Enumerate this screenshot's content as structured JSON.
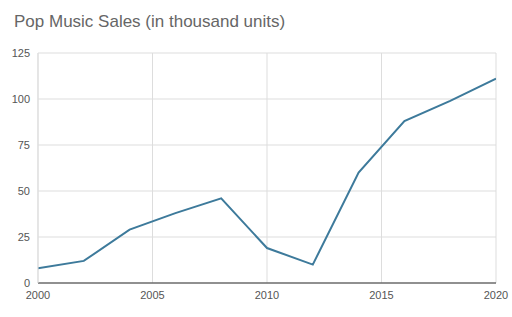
{
  "chart_data": {
    "type": "line",
    "title": "Pop Music Sales (in thousand units)",
    "x": [
      2000,
      2002,
      2004,
      2006,
      2008,
      2010,
      2012,
      2014,
      2016,
      2018,
      2020
    ],
    "series": [
      {
        "name": "Pop Music Sales",
        "color": "#3d7a9b",
        "values": [
          8,
          12,
          29,
          38,
          46,
          19,
          10,
          60,
          88,
          99,
          111
        ]
      }
    ],
    "xlim": [
      2000,
      2020
    ],
    "xticks": [
      2000,
      2005,
      2010,
      2015,
      2020
    ],
    "ylim": [
      0,
      125
    ],
    "yticks": [
      0,
      25,
      50,
      75,
      100,
      125
    ],
    "grid": true
  }
}
